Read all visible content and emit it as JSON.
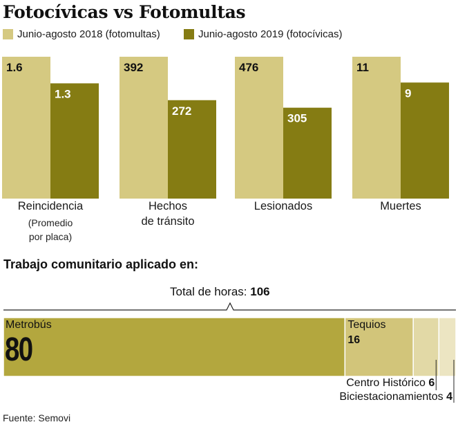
{
  "title": "Fotocívicas vs Fotomultas",
  "colors": {
    "light": "#d5c981",
    "dark": "#857c13",
    "hbar_main": "#b3a73e",
    "hbar_tequios": "#d2c57a",
    "hbar_centro": "#e2d9a6",
    "hbar_bici": "#ece5c2"
  },
  "legend": [
    {
      "label": "Junio-agosto 2018 (fotomultas)"
    },
    {
      "label": "Junio-agosto 2019 (fotocívicas)"
    }
  ],
  "chart_data": [
    {
      "type": "bar",
      "title": "Fotocívicas vs Fotomultas",
      "series_names": [
        "Junio-agosto 2018 (fotomultas)",
        "Junio-agosto 2019 (fotocívicas)"
      ],
      "groups": [
        {
          "label_lines": [
            "Reincidencia"
          ],
          "sub_lines": [
            "(Promedio",
            "por placa)"
          ],
          "values": [
            1.6,
            1.3
          ],
          "value_labels": [
            "1.6",
            "1.3"
          ]
        },
        {
          "label_lines": [
            "Hechos",
            "de tránsito"
          ],
          "sub_lines": [],
          "values": [
            392,
            272
          ],
          "value_labels": [
            "392",
            "272"
          ]
        },
        {
          "label_lines": [
            "Lesionados"
          ],
          "sub_lines": [],
          "values": [
            476,
            305
          ],
          "value_labels": [
            "476",
            "305"
          ]
        },
        {
          "label_lines": [
            "Muertes"
          ],
          "sub_lines": [],
          "values": [
            11,
            9
          ],
          "value_labels": [
            "11",
            "9"
          ]
        }
      ]
    },
    {
      "type": "bar",
      "orientation": "horizontal-stacked",
      "title": "Trabajo comunitario aplicado en:",
      "total_label": "Total de horas:",
      "total_value": "106",
      "segments": [
        {
          "label": "Metrobús",
          "value": 80
        },
        {
          "label": "Tequios",
          "value": 16
        },
        {
          "label": "Centro Histórico",
          "value": 6
        },
        {
          "label": "Biciestacionamientos",
          "value": 4
        }
      ]
    }
  ],
  "source": "Fuente: Semovi"
}
